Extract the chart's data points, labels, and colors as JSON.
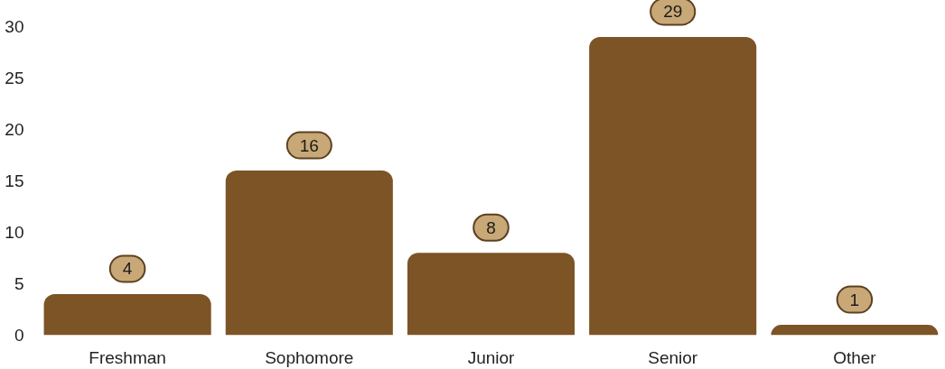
{
  "chart_data": {
    "type": "bar",
    "categories": [
      "Freshman",
      "Sophomore",
      "Junior",
      "Senior",
      "Other"
    ],
    "values": [
      4,
      16,
      8,
      29,
      1
    ],
    "color": "#7c5425",
    "ylim": [
      0,
      30
    ],
    "yticks": [
      0,
      5,
      10,
      15,
      20,
      25,
      30
    ],
    "grid": false,
    "data_labels": true
  }
}
